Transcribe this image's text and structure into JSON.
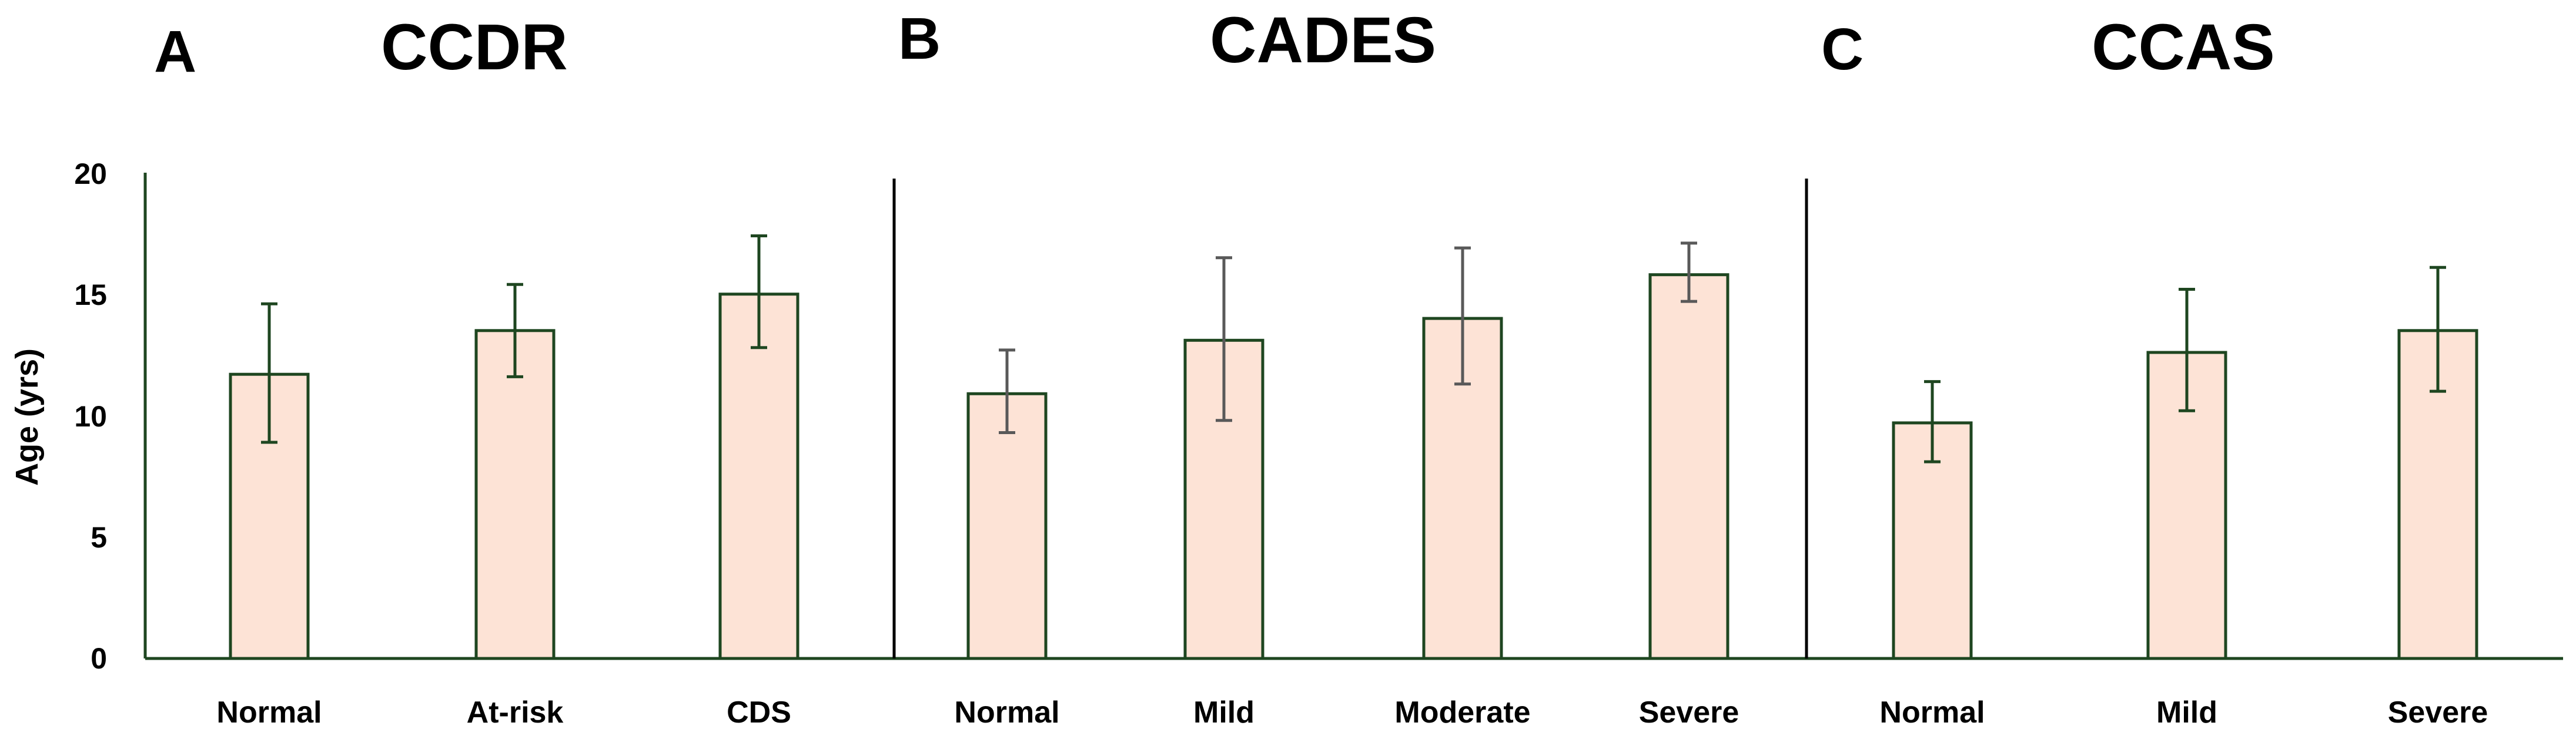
{
  "colors": {
    "bar_fill": "#fde3d6",
    "bar_stroke": "#1e4620",
    "error_bar_dark": "#1e4620",
    "error_bar_gray": "#595959",
    "axis": "#1e4620",
    "divider": "#000000"
  },
  "ylabel": "Age (yrs)",
  "chart_data": [
    {
      "type": "bar",
      "panel": "A",
      "title": "CCDR",
      "categories": [
        "Normal",
        "At-risk",
        "CDS"
      ],
      "values": [
        11.7,
        13.5,
        15.0
      ],
      "error_low": [
        8.9,
        11.6,
        12.8
      ],
      "error_high": [
        14.6,
        15.4,
        17.4
      ],
      "error_color": "dark",
      "ylabel": "Age (yrs)",
      "ylim": [
        0,
        20
      ],
      "yticks": [
        "0",
        "5",
        "10",
        "15",
        "20"
      ]
    },
    {
      "type": "bar",
      "panel": "B",
      "title": "CADES",
      "categories": [
        "Normal",
        "Mild",
        "Moderate",
        "Severe"
      ],
      "values": [
        10.9,
        13.1,
        14.0,
        15.8
      ],
      "error_low": [
        9.3,
        9.8,
        11.3,
        14.7
      ],
      "error_high": [
        12.7,
        16.5,
        16.9,
        17.1
      ],
      "error_color": "gray",
      "ylim": [
        0,
        20
      ]
    },
    {
      "type": "bar",
      "panel": "C",
      "title": "CCAS",
      "categories": [
        "Normal",
        "Mild",
        "Severe"
      ],
      "values": [
        9.7,
        12.6,
        13.5
      ],
      "error_low": [
        8.1,
        10.2,
        11.0
      ],
      "error_high": [
        11.4,
        15.2,
        16.1
      ],
      "error_color": "dark",
      "ylim": [
        0,
        20
      ]
    }
  ]
}
